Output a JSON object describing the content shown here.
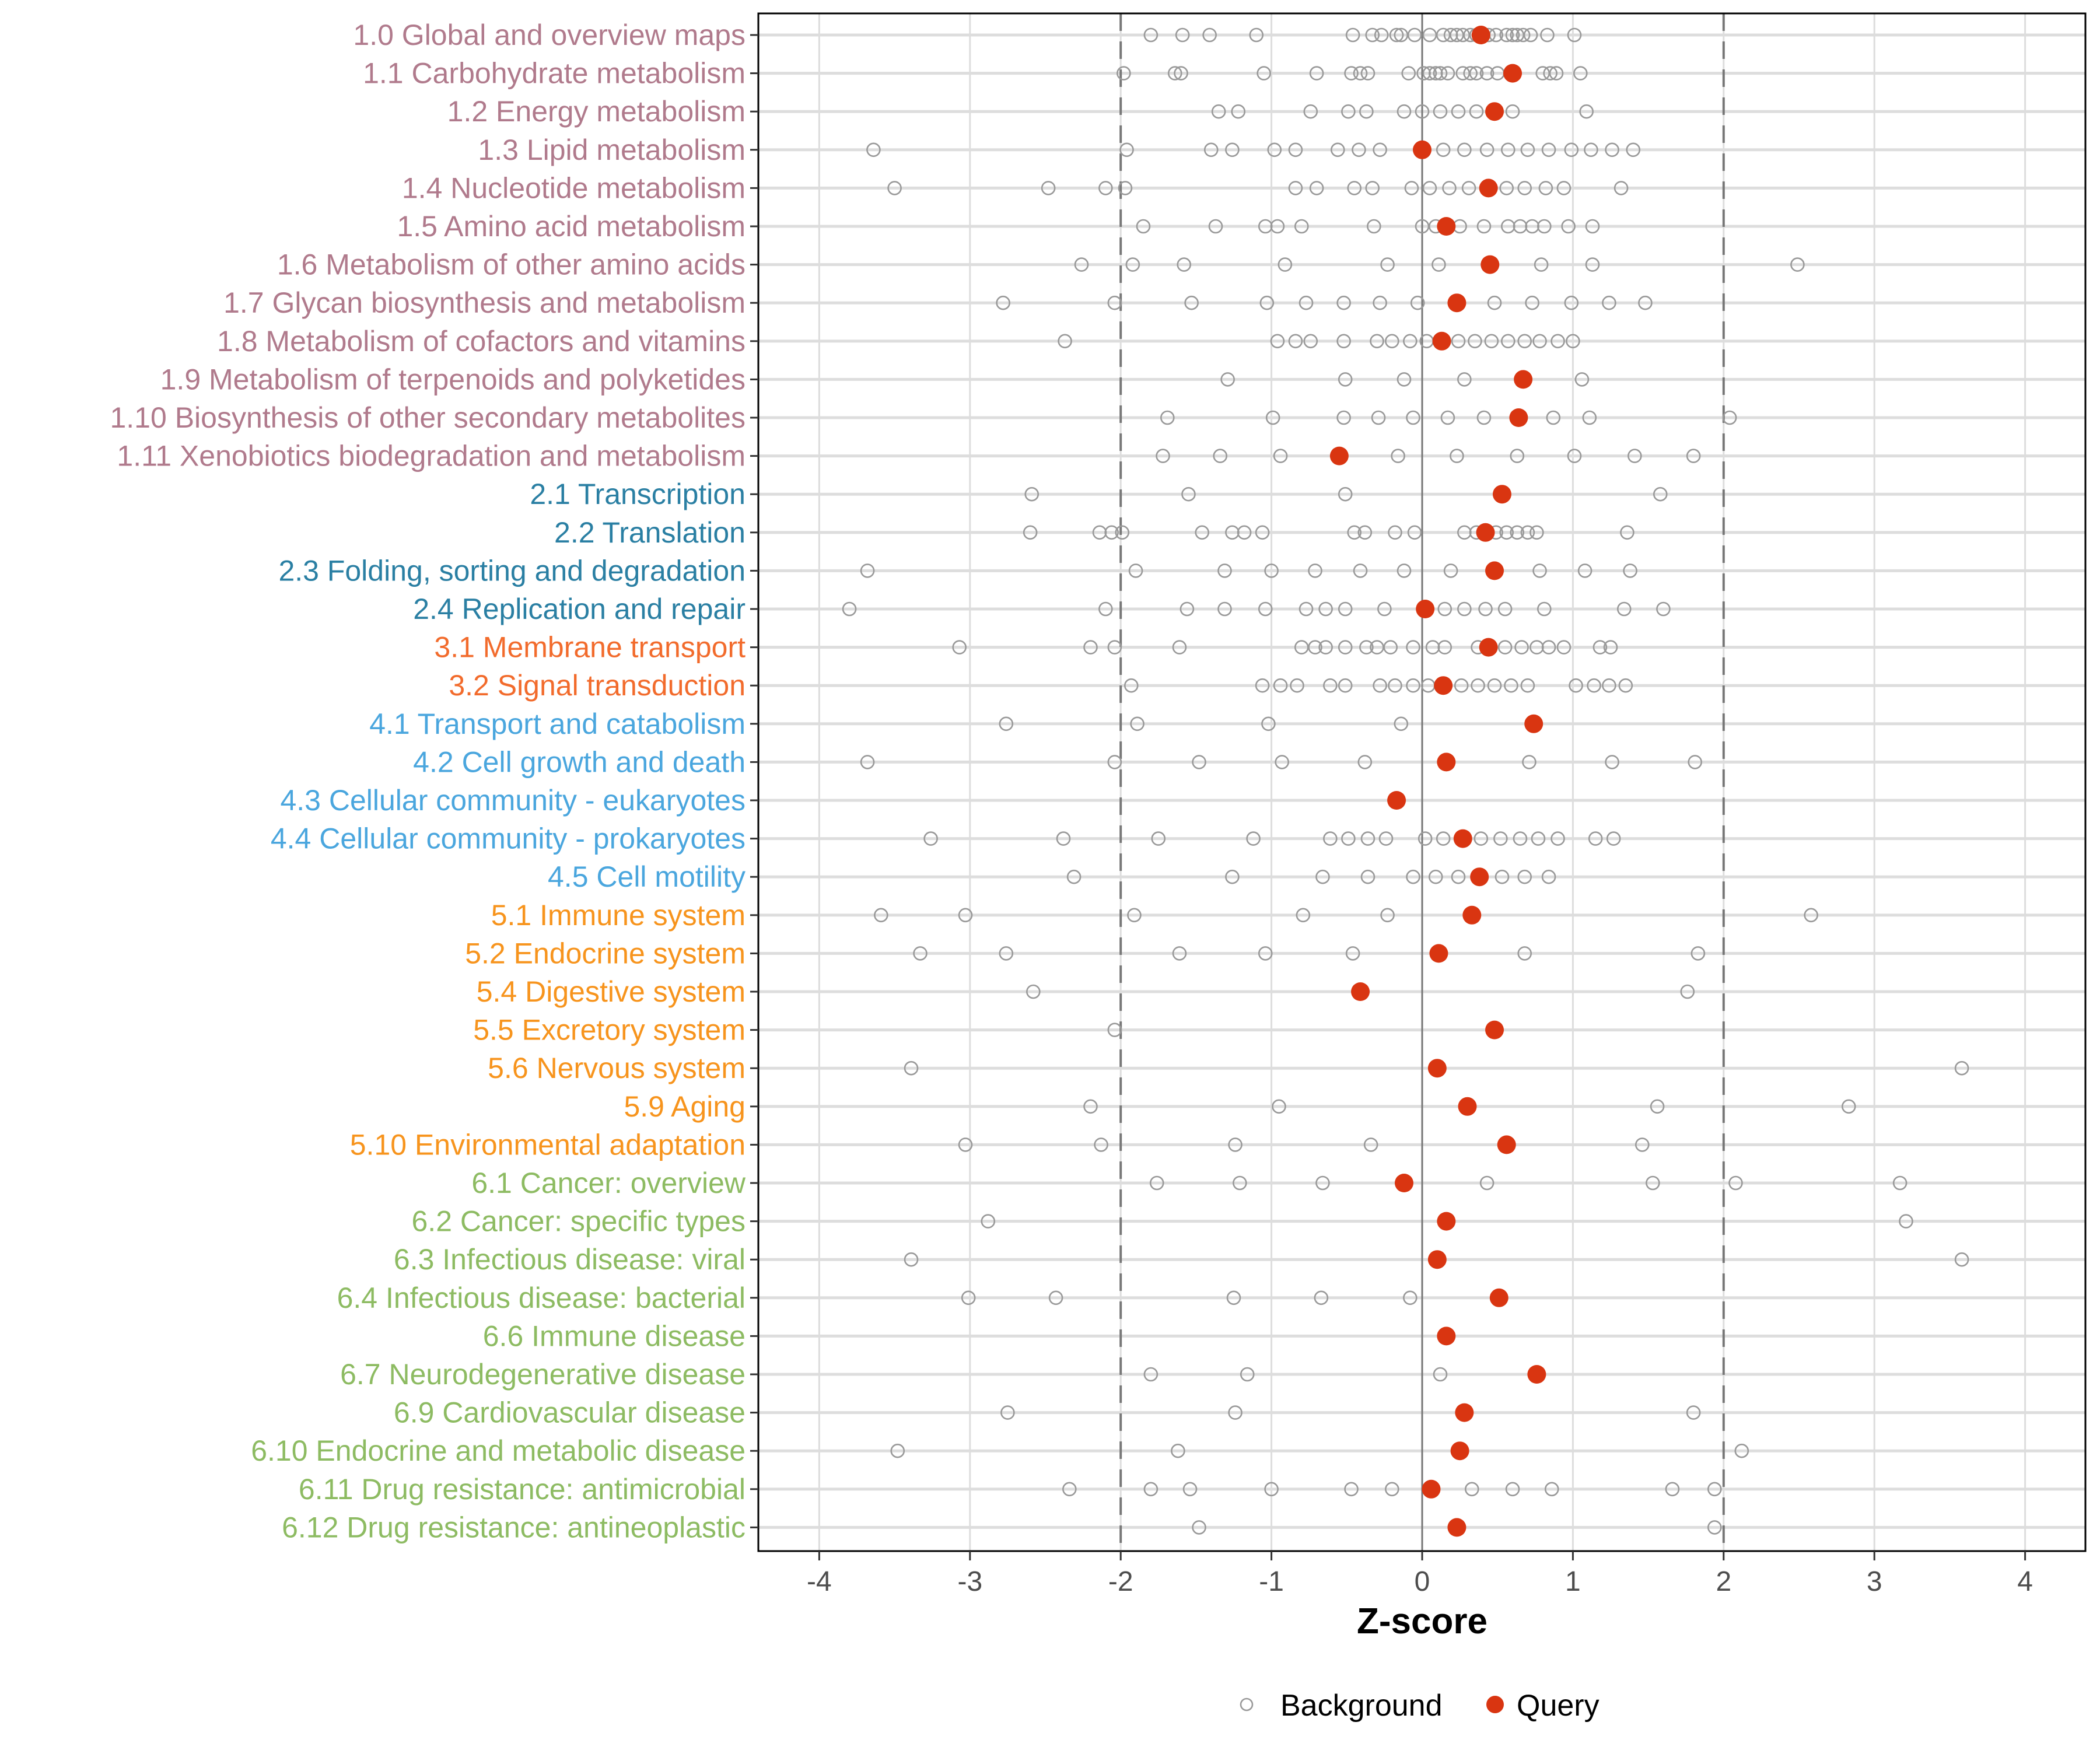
{
  "chart_data": {
    "type": "scatter",
    "title": "",
    "xlabel": "Z-score",
    "ylabel": "",
    "xlim": [
      -4.4,
      4.4
    ],
    "x_ticks": [
      -4,
      -3,
      -2,
      -1,
      0,
      1,
      2,
      3,
      4
    ],
    "x_tick_labels": [
      "-4",
      "-3",
      "-2",
      "-1",
      "0",
      "1",
      "2",
      "3",
      "4"
    ],
    "reference_lines": {
      "solid": [
        0
      ],
      "dashed": [
        -2,
        2
      ]
    },
    "grid": true,
    "legend": {
      "placement": "bottom",
      "entries": [
        {
          "name": "Background",
          "marker": "open-circle",
          "color": "#999999"
        },
        {
          "name": "Query",
          "marker": "filled-circle",
          "color": "#D93511"
        }
      ]
    },
    "group_colors": {
      "1": "#B07A8C",
      "2": "#2A7FA3",
      "3": "#F26B2C",
      "4": "#4AA6DE",
      "5": "#F7941D",
      "6": "#8DBB62"
    },
    "rows": [
      {
        "label": "1.0 Global and overview maps",
        "group": "1",
        "query": 0.39,
        "background": [
          -1.8,
          -1.59,
          -1.41,
          -1.1,
          -0.46,
          -0.33,
          -0.27,
          -0.17,
          -0.14,
          -0.05,
          0.05,
          0.14,
          0.19,
          0.23,
          0.27,
          0.32,
          0.36,
          0.44,
          0.49,
          0.56,
          0.6,
          0.63,
          0.67,
          0.72,
          0.83,
          1.01
        ]
      },
      {
        "label": "1.1 Carbohydrate metabolism",
        "group": "1",
        "query": 0.6,
        "background": [
          -1.98,
          -1.64,
          -1.6,
          -1.05,
          -0.7,
          -0.47,
          -0.41,
          -0.36,
          -0.09,
          0.01,
          0.05,
          0.09,
          0.12,
          0.17,
          0.27,
          0.32,
          0.36,
          0.43,
          0.5,
          0.8,
          0.85,
          0.89,
          1.05
        ]
      },
      {
        "label": "1.2 Energy metabolism",
        "group": "1",
        "query": 0.48,
        "background": [
          -1.35,
          -1.22,
          -0.74,
          -0.49,
          -0.37,
          -0.12,
          0.0,
          0.12,
          0.24,
          0.36,
          0.6,
          1.09
        ]
      },
      {
        "label": "1.3 Lipid metabolism",
        "group": "1",
        "query": 0.0,
        "background": [
          -3.64,
          -1.96,
          -1.4,
          -1.26,
          -0.98,
          -0.84,
          -0.56,
          -0.42,
          -0.28,
          0.14,
          0.28,
          0.43,
          0.57,
          0.7,
          0.84,
          0.99,
          1.12,
          1.26,
          1.4
        ]
      },
      {
        "label": "1.4 Nucleotide metabolism",
        "group": "1",
        "query": 0.44,
        "background": [
          -3.5,
          -2.48,
          -2.1,
          -1.97,
          -0.84,
          -0.7,
          -0.45,
          -0.33,
          -0.07,
          0.05,
          0.18,
          0.31,
          0.56,
          0.68,
          0.82,
          0.94,
          1.32
        ]
      },
      {
        "label": "1.5 Amino acid metabolism",
        "group": "1",
        "query": 0.16,
        "background": [
          -1.85,
          -1.37,
          -1.04,
          -0.96,
          -0.8,
          -0.32,
          0.0,
          0.09,
          0.25,
          0.41,
          0.57,
          0.65,
          0.73,
          0.81,
          0.97,
          1.13
        ]
      },
      {
        "label": "1.6 Metabolism of other amino acids",
        "group": "1",
        "query": 0.45,
        "background": [
          -2.26,
          -1.92,
          -1.58,
          -0.91,
          -0.23,
          0.11,
          0.79,
          1.13,
          2.49
        ]
      },
      {
        "label": "1.7 Glycan biosynthesis and metabolism",
        "group": "1",
        "query": 0.23,
        "background": [
          -2.78,
          -2.04,
          -1.53,
          -1.03,
          -0.77,
          -0.52,
          -0.28,
          -0.03,
          0.48,
          0.73,
          0.99,
          1.24,
          1.48
        ]
      },
      {
        "label": "1.8 Metabolism of cofactors and vitamins",
        "group": "1",
        "query": 0.13,
        "background": [
          -2.37,
          -0.96,
          -0.84,
          -0.74,
          -0.52,
          -0.3,
          -0.2,
          -0.08,
          0.03,
          0.24,
          0.35,
          0.46,
          0.57,
          0.68,
          0.78,
          0.9,
          1.0
        ]
      },
      {
        "label": "1.9 Metabolism of terpenoids and polyketides",
        "group": "1",
        "query": 0.67,
        "background": [
          -1.29,
          -0.51,
          -0.12,
          0.28,
          1.06
        ]
      },
      {
        "label": "1.10 Biosynthesis of other secondary metabolites",
        "group": "1",
        "query": 0.64,
        "background": [
          -1.69,
          -0.99,
          -0.52,
          -0.29,
          -0.06,
          0.17,
          0.41,
          0.87,
          1.11,
          2.04
        ]
      },
      {
        "label": "1.11 Xenobiotics biodegradation and metabolism",
        "group": "1",
        "query": -0.55,
        "background": [
          -1.72,
          -1.34,
          -0.94,
          -0.16,
          0.23,
          0.63,
          1.01,
          1.41,
          1.8
        ]
      },
      {
        "label": "2.1 Transcription",
        "group": "2",
        "query": 0.53,
        "background": [
          -2.59,
          -1.55,
          -0.51,
          1.58
        ]
      },
      {
        "label": "2.2 Translation",
        "group": "2",
        "query": 0.42,
        "background": [
          -2.6,
          -2.14,
          -2.06,
          -1.99,
          -1.46,
          -1.26,
          -1.18,
          -1.06,
          -0.45,
          -0.38,
          -0.18,
          -0.05,
          0.28,
          0.36,
          0.49,
          0.56,
          0.63,
          0.7,
          0.76,
          1.36
        ]
      },
      {
        "label": "2.3 Folding, sorting and degradation",
        "group": "2",
        "query": 0.48,
        "background": [
          -3.68,
          -1.9,
          -1.31,
          -1.0,
          -0.71,
          -0.41,
          -0.12,
          0.19,
          0.78,
          1.08,
          1.38
        ]
      },
      {
        "label": "2.4 Replication and repair",
        "group": "2",
        "query": 0.02,
        "background": [
          -3.8,
          -2.1,
          -1.56,
          -1.31,
          -1.04,
          -0.77,
          -0.64,
          -0.51,
          -0.25,
          0.15,
          0.28,
          0.42,
          0.55,
          0.81,
          1.34,
          1.6
        ]
      },
      {
        "label": "3.1 Membrane transport",
        "group": "3",
        "query": 0.44,
        "background": [
          -3.07,
          -2.2,
          -2.04,
          -1.61,
          -0.8,
          -0.71,
          -0.64,
          -0.51,
          -0.37,
          -0.3,
          -0.21,
          -0.06,
          0.07,
          0.15,
          0.37,
          0.55,
          0.66,
          0.76,
          0.84,
          0.94,
          1.18,
          1.25
        ]
      },
      {
        "label": "3.2 Signal transduction",
        "group": "3",
        "query": 0.14,
        "background": [
          -1.93,
          -1.06,
          -0.94,
          -0.83,
          -0.61,
          -0.51,
          -0.28,
          -0.18,
          -0.06,
          0.04,
          0.26,
          0.37,
          0.48,
          0.59,
          0.7,
          1.02,
          1.14,
          1.24,
          1.35
        ]
      },
      {
        "label": "4.1 Transport and catabolism",
        "group": "4",
        "query": 0.74,
        "background": [
          -2.76,
          -1.89,
          -1.02,
          -0.14
        ]
      },
      {
        "label": "4.2 Cell growth and death",
        "group": "4",
        "query": 0.16,
        "background": [
          -3.68,
          -2.04,
          -1.48,
          -0.93,
          -0.38,
          0.71,
          1.26,
          1.81
        ]
      },
      {
        "label": "4.3 Cellular community - eukaryotes",
        "group": "4",
        "query": -0.17,
        "background": []
      },
      {
        "label": "4.4 Cellular community - prokaryotes",
        "group": "4",
        "query": 0.27,
        "background": [
          -3.26,
          -2.38,
          -1.75,
          -1.12,
          -0.61,
          -0.49,
          -0.36,
          -0.24,
          0.02,
          0.14,
          0.39,
          0.52,
          0.65,
          0.77,
          0.9,
          1.15,
          1.27
        ]
      },
      {
        "label": "4.5 Cell motility",
        "group": "4",
        "query": 0.38,
        "background": [
          -2.31,
          -1.26,
          -0.66,
          -0.36,
          -0.06,
          0.09,
          0.24,
          0.53,
          0.68,
          0.84
        ]
      },
      {
        "label": "5.1 Immune system",
        "group": "5",
        "query": 0.33,
        "background": [
          -3.59,
          -3.03,
          -1.91,
          -0.79,
          -0.23,
          2.58
        ]
      },
      {
        "label": "5.2 Endocrine system",
        "group": "5",
        "query": 0.11,
        "background": [
          -3.33,
          -2.76,
          -1.61,
          -1.04,
          -0.46,
          0.68,
          1.83
        ]
      },
      {
        "label": "5.4 Digestive system",
        "group": "5",
        "query": -0.41,
        "background": [
          -2.58,
          1.76
        ]
      },
      {
        "label": "5.5 Excretory system",
        "group": "5",
        "query": 0.48,
        "background": [
          -2.04
        ]
      },
      {
        "label": "5.6 Nervous system",
        "group": "5",
        "query": 0.1,
        "background": [
          -3.39,
          3.58
        ]
      },
      {
        "label": "5.9 Aging",
        "group": "5",
        "query": 0.3,
        "background": [
          -2.2,
          -0.95,
          1.56,
          2.83
        ]
      },
      {
        "label": "5.10 Environmental adaptation",
        "group": "5",
        "query": 0.56,
        "background": [
          -3.03,
          -2.13,
          -1.24,
          -0.34,
          1.46
        ]
      },
      {
        "label": "6.1 Cancer: overview",
        "group": "6",
        "query": -0.12,
        "background": [
          -1.76,
          -1.21,
          -0.66,
          0.43,
          1.53,
          2.08,
          3.17
        ]
      },
      {
        "label": "6.2 Cancer: specific types",
        "group": "6",
        "query": 0.16,
        "background": [
          -2.88,
          3.21
        ]
      },
      {
        "label": "6.3 Infectious disease: viral",
        "group": "6",
        "query": 0.1,
        "background": [
          -3.39,
          3.58
        ]
      },
      {
        "label": "6.4 Infectious disease: bacterial",
        "group": "6",
        "query": 0.51,
        "background": [
          -3.01,
          -2.43,
          -1.25,
          -0.67,
          -0.08
        ]
      },
      {
        "label": "6.6 Immune disease",
        "group": "6",
        "query": 0.16,
        "background": []
      },
      {
        "label": "6.7 Neurodegenerative disease",
        "group": "6",
        "query": 0.76,
        "background": [
          -1.8,
          -1.16,
          0.12
        ]
      },
      {
        "label": "6.9 Cardiovascular disease",
        "group": "6",
        "query": 0.28,
        "background": [
          -2.75,
          -1.24,
          1.8
        ]
      },
      {
        "label": "6.10 Endocrine and metabolic disease",
        "group": "6",
        "query": 0.25,
        "background": [
          -3.48,
          -1.62,
          2.12
        ]
      },
      {
        "label": "6.11 Drug resistance: antimicrobial",
        "group": "6",
        "query": 0.06,
        "background": [
          -2.34,
          -1.8,
          -1.54,
          -1.0,
          -0.47,
          -0.2,
          0.33,
          0.6,
          0.86,
          1.66,
          1.94
        ]
      },
      {
        "label": "6.12 Drug resistance: antineoplastic",
        "group": "6",
        "query": 0.23,
        "background": [
          -1.48,
          1.94
        ]
      }
    ]
  }
}
